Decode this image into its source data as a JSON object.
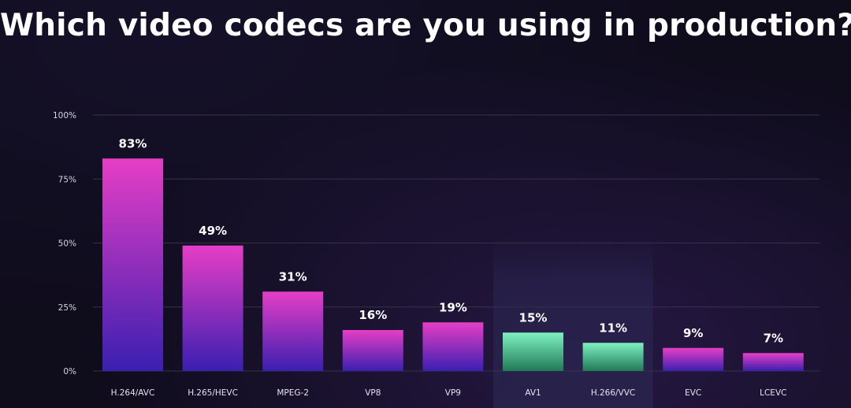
{
  "chart_data": {
    "type": "bar",
    "title": "Which video codecs are you using in production?",
    "xlabel": "",
    "ylabel": "",
    "ylim": [
      0,
      100
    ],
    "yticks": [
      {
        "value": 0,
        "label": "0%"
      },
      {
        "value": 25,
        "label": "25%"
      },
      {
        "value": 50,
        "label": "50%"
      },
      {
        "value": 75,
        "label": "75%"
      },
      {
        "value": 100,
        "label": "100%"
      }
    ],
    "grid": true,
    "categories": [
      "H.264/AVC",
      "H.265/HEVC",
      "MPEG-2",
      "VP8",
      "VP9",
      "AV1",
      "H.266/VVC",
      "EVC",
      "LCEVC"
    ],
    "values": [
      83,
      49,
      31,
      16,
      19,
      15,
      11,
      9,
      7
    ],
    "data_labels": [
      "83%",
      "49%",
      "31%",
      "16%",
      "19%",
      "15%",
      "11%",
      "9%",
      "7%"
    ],
    "highlighted": [
      false,
      false,
      false,
      false,
      false,
      true,
      true,
      false,
      false
    ],
    "colors": {
      "bar_top": "#e63ec6",
      "bar_bottom": "#3a1fb0",
      "highlight_top": "#7ff0c0",
      "highlight_bottom": "#1f7a58",
      "highlight_band": "#2a2650",
      "grid": "#34324a"
    }
  }
}
